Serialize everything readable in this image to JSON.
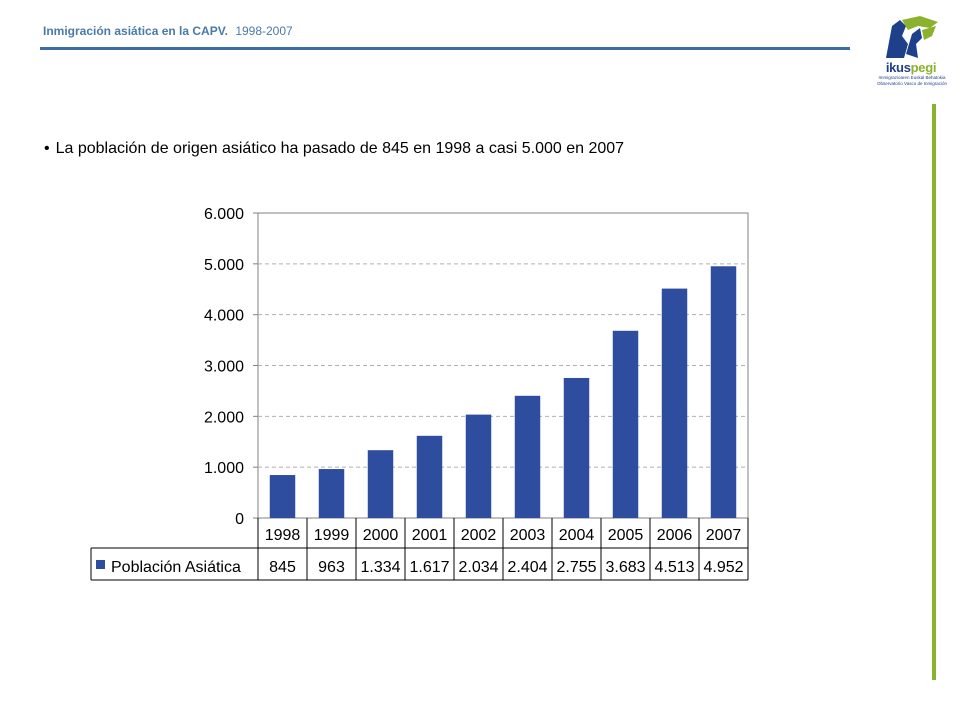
{
  "header": {
    "title": "Inmigración asiática  en la CAPV.",
    "years": "1998-2007"
  },
  "logo": {
    "word_main": "ikus",
    "word_accent": "pegi",
    "subtitle_line1": "Immigrazioaren Euskal Behatokia",
    "subtitle_line2": "Observatorio Vasco de Inmigración",
    "colors": {
      "blue": "#1e3f8a",
      "green": "#8ab22c"
    }
  },
  "bullet": {
    "symbol": "•",
    "text": "La población de origen asiático ha pasado de 845 en 1998 a casi 5.000 en 2007"
  },
  "chart_data": {
    "type": "bar",
    "title": "",
    "xlabel": "",
    "ylabel": "",
    "categories": [
      "1998",
      "1999",
      "2000",
      "2001",
      "2002",
      "2003",
      "2004",
      "2005",
      "2006",
      "2007"
    ],
    "series": [
      {
        "name": "Población Asiática",
        "values": [
          845,
          963,
          1334,
          1617,
          2034,
          2404,
          2755,
          3683,
          4513,
          4952
        ],
        "value_labels": [
          "845",
          "963",
          "1.334",
          "1.617",
          "2.034",
          "2.404",
          "2.755",
          "3.683",
          "4.513",
          "4.952"
        ],
        "color": "#2e4d9e"
      }
    ],
    "ylim": [
      0,
      6000
    ],
    "yticks": [
      0,
      1000,
      2000,
      3000,
      4000,
      5000,
      6000
    ],
    "ytick_labels": [
      "0",
      "1.000",
      "2.000",
      "3.000",
      "4.000",
      "5.000",
      "6.000"
    ],
    "grid": true,
    "legend": "data-table-row"
  }
}
